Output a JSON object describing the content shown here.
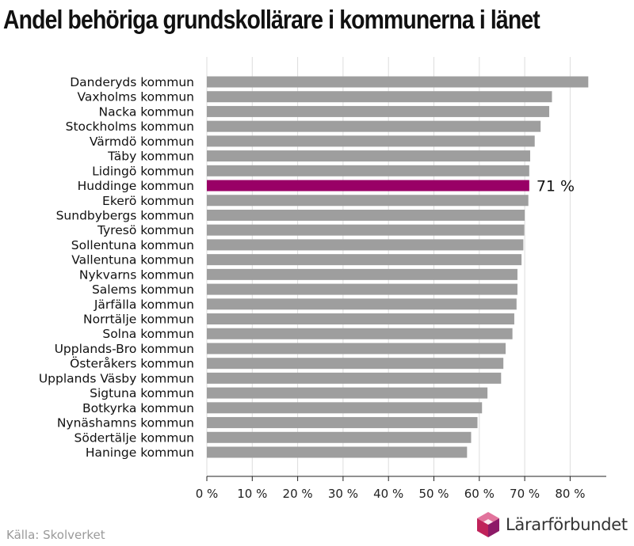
{
  "title": "Andel behöriga grundskollärare i kommunerna i länet",
  "source": "Källa: Skolverket",
  "brand": {
    "name": "Lärarförbundet",
    "logo_colors": [
      "#c0225a",
      "#8d1a67",
      "#e2739c"
    ]
  },
  "colors": {
    "bar": "#9e9e9e",
    "highlight": "#990066",
    "grid": "#dddddd",
    "axis": "#222222"
  },
  "chart_data": {
    "type": "bar",
    "orientation": "horizontal",
    "title": "Andel behöriga grundskollärare i kommunerna i länet",
    "categories": [
      "Danderyds kommun",
      "Vaxholms kommun",
      "Nacka kommun",
      "Stockholms kommun",
      "Värmdö kommun",
      "Täby kommun",
      "Lidingö kommun",
      "Huddinge kommun",
      "Ekerö kommun",
      "Sundbybergs kommun",
      "Tyresö kommun",
      "Sollentuna kommun",
      "Vallentuna kommun",
      "Nykvarns kommun",
      "Salems kommun",
      "Järfälla kommun",
      "Norrtälje kommun",
      "Solna kommun",
      "Upplands-Bro kommun",
      "Österåkers kommun",
      "Upplands Väsby kommun",
      "Sigtuna kommun",
      "Botkyrka kommun",
      "Nynäshamns kommun",
      "Södertälje kommun",
      "Haninge kommun"
    ],
    "values": [
      84,
      76,
      75.4,
      73.5,
      72.2,
      71.2,
      71,
      71,
      70.8,
      70,
      69.9,
      69.7,
      69.3,
      68.4,
      68.4,
      68.2,
      67.7,
      67.3,
      65.8,
      65.3,
      64.8,
      61.8,
      60.6,
      59.6,
      58.2,
      57.3
    ],
    "highlight": "Huddinge kommun",
    "highlight_label": "71 %",
    "xlim": [
      0,
      88
    ],
    "xticks": [
      0,
      10,
      20,
      30,
      40,
      50,
      60,
      70,
      80
    ],
    "xtick_labels": [
      "0 %",
      "10 %",
      "20 %",
      "30 %",
      "40 %",
      "50 %",
      "60 %",
      "70 %",
      "80 %"
    ],
    "grid": true
  }
}
